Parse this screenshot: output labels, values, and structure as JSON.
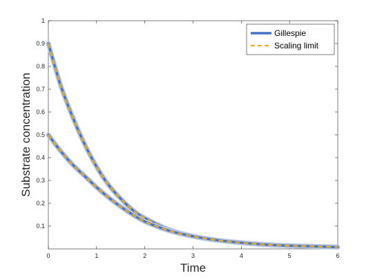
{
  "chart_data": {
    "type": "line",
    "title": "",
    "xlabel": "Time",
    "ylabel": "Substrate concentration",
    "xlim": [
      0,
      6
    ],
    "ylim": [
      0,
      1
    ],
    "x_ticks": [
      0,
      1,
      2,
      3,
      4,
      5,
      6
    ],
    "y_ticks": [
      0.1,
      0.2,
      0.3,
      0.4,
      0.5,
      0.6,
      0.7,
      0.8,
      0.9,
      1
    ],
    "x_tick_labels": [
      "0",
      "1",
      "2",
      "3",
      "4",
      "5",
      "6"
    ],
    "y_tick_labels": [
      "0.1",
      "0.2",
      "0.3",
      "0.4",
      "0.5",
      "0.6",
      "0.7",
      "0.8",
      "0.9",
      "1"
    ],
    "grid": false,
    "legend_position": "top-right",
    "legend": [
      {
        "name": "Gillespie",
        "color": "#4472c4",
        "style": "solid"
      },
      {
        "name": "Scaling limit",
        "color": "#edb120",
        "style": "dashed"
      }
    ],
    "curves": [
      {
        "x": [
          0,
          0.25,
          0.5,
          0.75,
          1,
          1.25,
          1.5,
          1.75,
          2,
          2.5,
          3,
          3.5,
          4,
          4.5,
          5,
          5.5,
          6
        ],
        "y": [
          0.9,
          0.72,
          0.58,
          0.46,
          0.36,
          0.28,
          0.22,
          0.17,
          0.135,
          0.085,
          0.055,
          0.038,
          0.027,
          0.019,
          0.014,
          0.011,
          0.008
        ]
      },
      {
        "x": [
          0,
          0.25,
          0.5,
          0.75,
          1,
          1.25,
          1.5,
          1.75,
          2,
          2.5,
          3,
          3.5,
          4,
          4.5,
          5,
          5.5,
          6
        ],
        "y": [
          0.5,
          0.43,
          0.37,
          0.32,
          0.27,
          0.225,
          0.185,
          0.15,
          0.12,
          0.08,
          0.055,
          0.038,
          0.027,
          0.019,
          0.014,
          0.011,
          0.008
        ]
      }
    ]
  }
}
